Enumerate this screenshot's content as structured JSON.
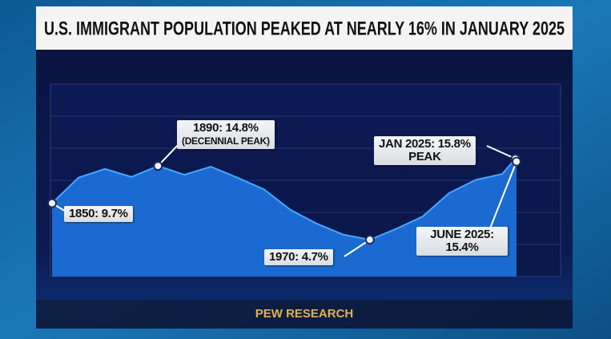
{
  "chart_data": {
    "type": "area",
    "title": "U.S. IMMIGRANT POPULATION PEAKED AT NEARLY 16% IN JANUARY 2025",
    "source": "PEW RESEARCH",
    "x": [
      1850,
      1860,
      1870,
      1880,
      1890,
      1900,
      1910,
      1920,
      1930,
      1940,
      1950,
      1960,
      1970,
      1980,
      1990,
      2000,
      2010,
      2020,
      2025,
      2025.4
    ],
    "values": [
      9.7,
      13.2,
      14.4,
      13.3,
      14.8,
      13.6,
      14.7,
      13.2,
      11.6,
      8.8,
      6.9,
      5.4,
      4.7,
      6.2,
      7.9,
      11.1,
      12.9,
      13.7,
      15.8,
      15.4
    ],
    "value_labels": [
      "1850: 9.7%",
      null,
      null,
      null,
      "1890: 14.8%",
      null,
      null,
      null,
      null,
      null,
      null,
      null,
      "1970: 4.7%",
      null,
      null,
      null,
      null,
      null,
      "JAN 2025: 15.8%",
      "JUNE 2025: 15.4%"
    ],
    "annotations": [
      "(DECENNIAL PEAK)",
      "PEAK"
    ],
    "xlim": [
      1850,
      2025.4
    ],
    "ylim": [
      0,
      26
    ],
    "color": "#1c6fd8",
    "line_color": "#48a6ff"
  }
}
